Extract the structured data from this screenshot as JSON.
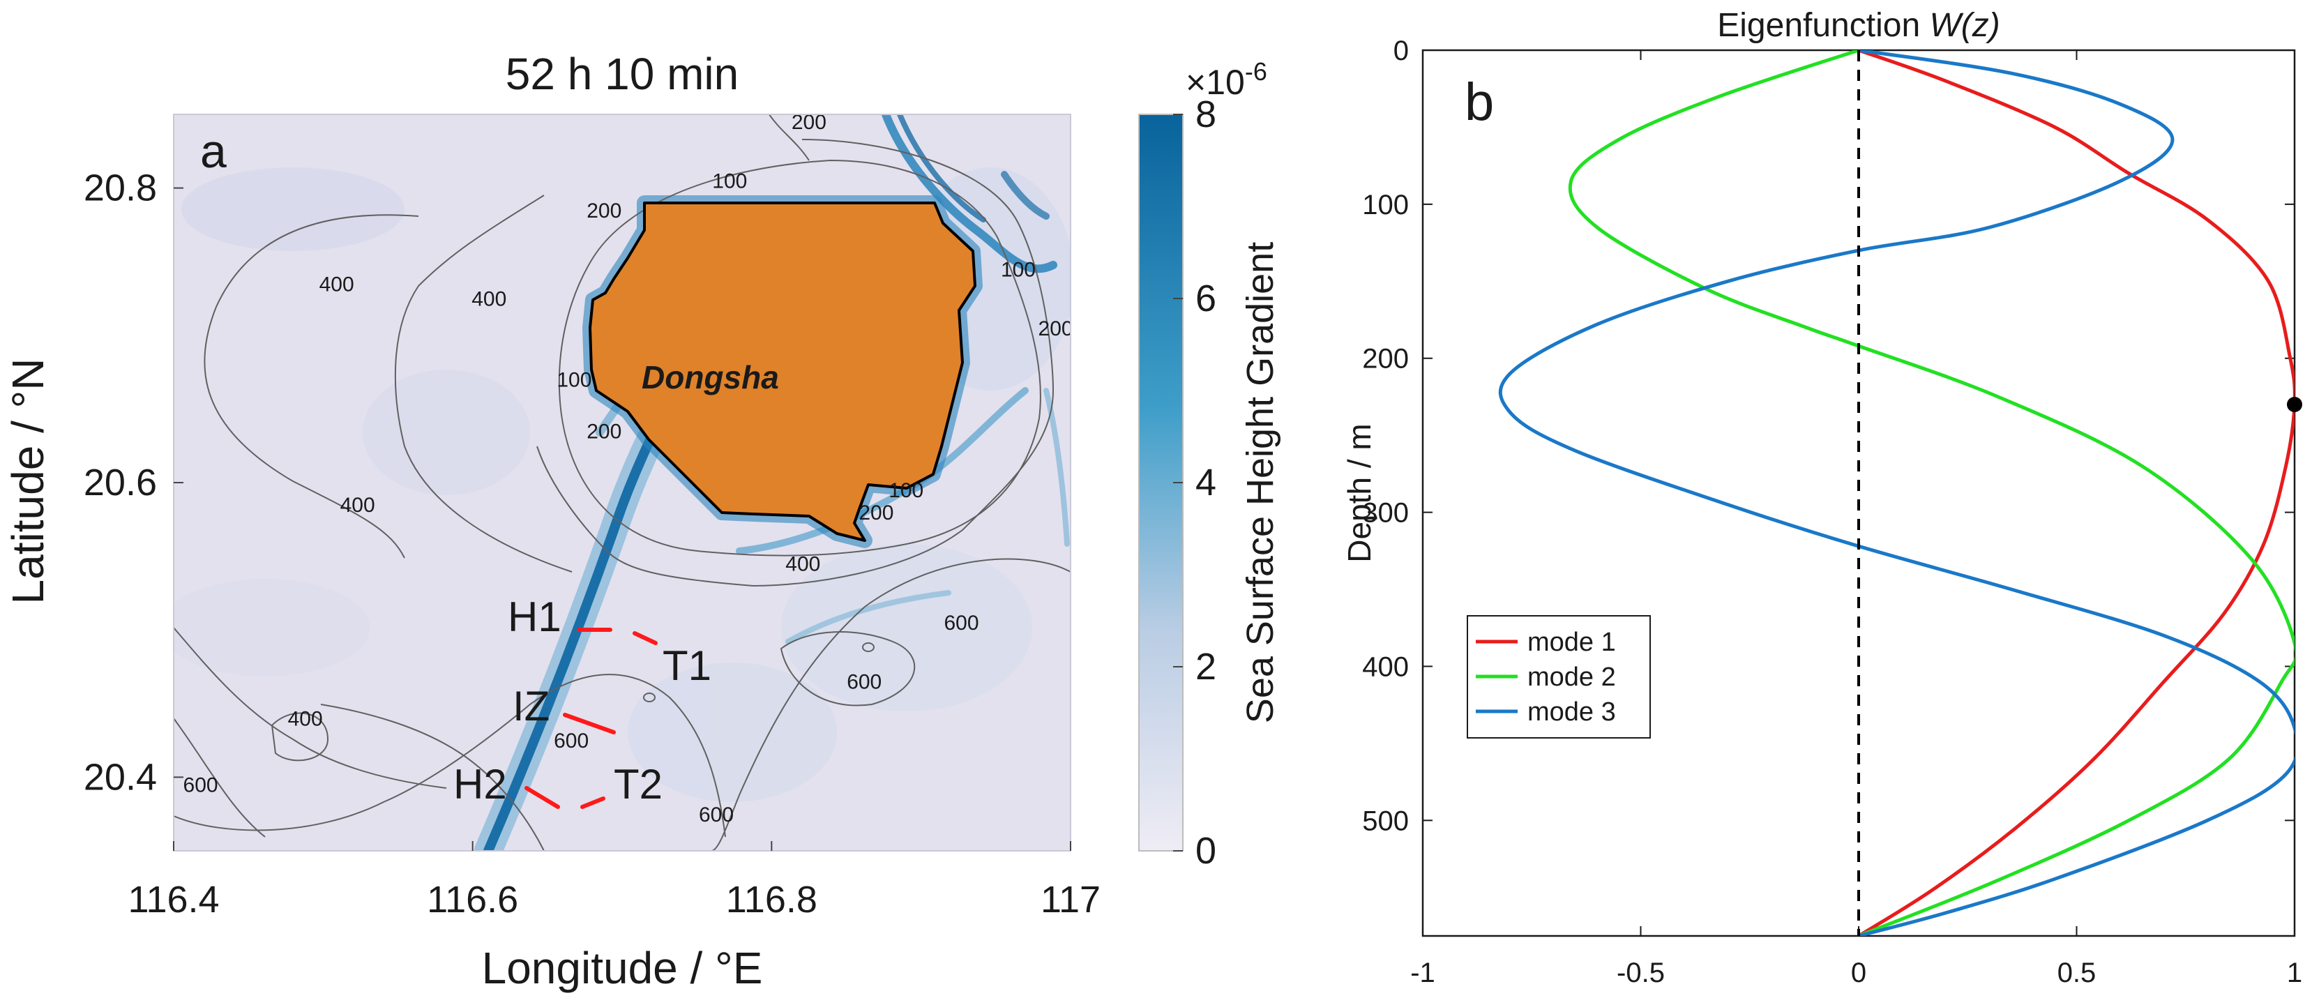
{
  "chart_data": [
    {
      "panel": "a",
      "type": "heatmap",
      "title": "52 h 10 min",
      "xlabel": "Longitude / °E",
      "ylabel": "Latitude / °N",
      "xlim": [
        116.4,
        117.0
      ],
      "ylim": [
        20.35,
        20.85
      ],
      "xticks": [
        116.4,
        116.6,
        116.8,
        117
      ],
      "xtick_labels": [
        "116.4",
        "116.6",
        "116.8",
        "117"
      ],
      "yticks": [
        20.4,
        20.6,
        20.8
      ],
      "ytick_labels": [
        "20.4",
        "20.6",
        "20.8"
      ],
      "island_label": "Dongsha",
      "contour_labels": [
        "100",
        "200",
        "400",
        "600"
      ],
      "contour_label_instances": [
        {
          "text": "200",
          "lon": 116.825,
          "lat": 20.84
        },
        {
          "text": "100",
          "lon": 116.772,
          "lat": 20.8
        },
        {
          "text": "200",
          "lon": 116.688,
          "lat": 20.78
        },
        {
          "text": "400",
          "lon": 116.509,
          "lat": 20.73
        },
        {
          "text": "400",
          "lon": 116.611,
          "lat": 20.72
        },
        {
          "text": "100",
          "lon": 116.965,
          "lat": 20.74
        },
        {
          "text": "200",
          "lon": 116.99,
          "lat": 20.7
        },
        {
          "text": "100",
          "lon": 116.668,
          "lat": 20.665
        },
        {
          "text": "200",
          "lon": 116.688,
          "lat": 20.63
        },
        {
          "text": "400",
          "lon": 116.523,
          "lat": 20.58
        },
        {
          "text": "200",
          "lon": 116.87,
          "lat": 20.575
        },
        {
          "text": "100",
          "lon": 116.89,
          "lat": 20.59
        },
        {
          "text": "400",
          "lon": 116.821,
          "lat": 20.54
        },
        {
          "text": "600",
          "lon": 116.927,
          "lat": 20.5
        },
        {
          "text": "400",
          "lon": 116.488,
          "lat": 20.435
        },
        {
          "text": "600",
          "lon": 116.862,
          "lat": 20.46
        },
        {
          "text": "600",
          "lon": 116.666,
          "lat": 20.42
        },
        {
          "text": "600",
          "lon": 116.418,
          "lat": 20.39
        },
        {
          "text": "600",
          "lon": 116.763,
          "lat": 20.37
        }
      ],
      "transect_labels": [
        "H1",
        "T1",
        "IZ",
        "H2",
        "T2"
      ],
      "colorbar": {
        "label": "Sea Surface Height Gradient",
        "min": 0,
        "max": 8,
        "ticks": [
          0,
          2,
          4,
          6,
          8
        ],
        "tick_labels": [
          "0",
          "2",
          "4",
          "6",
          "8"
        ],
        "exponent_label": "×10",
        "exponent_power": "-6",
        "color_low": "#ece8f3",
        "color_high": "#09659e"
      },
      "colors": {
        "island": "#e0822a",
        "transect": "#ff1a1a",
        "contour": "#555555"
      }
    },
    {
      "panel": "b",
      "type": "line",
      "title_prefix": "Eigenfunction ",
      "title_italic": "W(z)",
      "xlabel": "",
      "ylabel": "Depth / m",
      "xlim": [
        -1,
        1
      ],
      "ylim": [
        0,
        575
      ],
      "y_reversed": true,
      "xticks": [
        -1,
        -0.5,
        0,
        0.5,
        1
      ],
      "xtick_labels": [
        "-1",
        "-0.5",
        "0",
        "0.5",
        "1"
      ],
      "yticks": [
        0,
        100,
        200,
        300,
        400,
        500
      ],
      "ytick_labels": [
        "0",
        "100",
        "200",
        "300",
        "400",
        "500"
      ],
      "legend_position": "bottom-left",
      "marker_point": {
        "x": 1,
        "y": 230
      },
      "series": [
        {
          "name": "mode 1",
          "color": "#e81c1c",
          "points": [
            [
              0,
              0
            ],
            [
              0.2,
              20
            ],
            [
              0.45,
              50
            ],
            [
              0.62,
              80
            ],
            [
              0.8,
              110
            ],
            [
              0.94,
              150
            ],
            [
              0.99,
              200
            ],
            [
              1,
              230
            ],
            [
              0.98,
              270
            ],
            [
              0.93,
              320
            ],
            [
              0.84,
              365
            ],
            [
              0.7,
              410
            ],
            [
              0.54,
              460
            ],
            [
              0.36,
              505
            ],
            [
              0.17,
              545
            ],
            [
              0,
              575
            ]
          ]
        },
        {
          "name": "mode 2",
          "color": "#22e022",
          "points": [
            [
              0,
              0
            ],
            [
              -0.32,
              30
            ],
            [
              -0.55,
              58
            ],
            [
              -0.66,
              85
            ],
            [
              -0.6,
              115
            ],
            [
              -0.35,
              155
            ],
            [
              -0.12,
              180
            ],
            [
              0,
              192
            ],
            [
              0.32,
              225
            ],
            [
              0.65,
              270
            ],
            [
              0.9,
              330
            ],
            [
              1,
              385
            ],
            [
              0.97,
              410
            ],
            [
              0.85,
              460
            ],
            [
              0.62,
              500
            ],
            [
              0.31,
              540
            ],
            [
              0,
              575
            ]
          ]
        },
        {
          "name": "mode 3",
          "color": "#1a78c8",
          "points": [
            [
              0,
              0
            ],
            [
              0.35,
              15
            ],
            [
              0.6,
              35
            ],
            [
              0.72,
              58
            ],
            [
              0.6,
              85
            ],
            [
              0.3,
              115
            ],
            [
              0,
              130
            ],
            [
              -0.3,
              150
            ],
            [
              -0.6,
              178
            ],
            [
              -0.8,
              210
            ],
            [
              -0.8,
              235
            ],
            [
              -0.65,
              260
            ],
            [
              -0.3,
              295
            ],
            [
              0,
              322
            ],
            [
              0.35,
              350
            ],
            [
              0.7,
              380
            ],
            [
              0.92,
              410
            ],
            [
              1,
              440
            ],
            [
              0.98,
              470
            ],
            [
              0.8,
              500
            ],
            [
              0.45,
              538
            ],
            [
              0.2,
              560
            ],
            [
              0,
              575
            ]
          ]
        }
      ]
    }
  ]
}
